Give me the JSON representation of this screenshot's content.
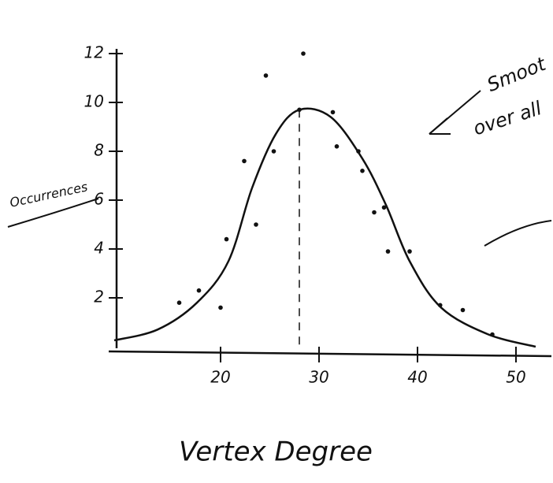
{
  "chart_data": {
    "type": "scatter",
    "x_label": "Vertex Degree",
    "y_label": "Occurrences",
    "annotation": [
      "Smoot",
      "over all"
    ],
    "xlim": [
      8.8,
      53.6
    ],
    "ylim": [
      0,
      12.5
    ],
    "xticks": [
      20,
      30,
      40,
      50
    ],
    "yticks": [
      2,
      4,
      6,
      8,
      10,
      12
    ],
    "color": "#111111",
    "points": {
      "x": [
        15.8,
        17.8,
        20,
        20.6,
        22.4,
        23.6,
        24.6,
        25.4,
        28,
        28.4,
        31.4,
        31.8,
        34,
        34.4,
        35.6,
        36.6,
        37,
        39.2,
        42.3,
        44.6,
        47.6
      ],
      "y": [
        1.8,
        2.3,
        1.6,
        4.4,
        7.6,
        5.0,
        11.1,
        8.0,
        9.7,
        12.0,
        9.6,
        8.2,
        8.0,
        7.2,
        5.5,
        5.7,
        3.9,
        3.9,
        1.7,
        1.5,
        0.5
      ]
    },
    "curve": {
      "x": [
        9.2,
        13.6,
        17.6,
        20.8,
        23.2,
        25.6,
        28,
        31.2,
        34.4,
        36.8,
        39.2,
        42.4,
        47.2,
        52
      ],
      "y": [
        0.26,
        0.7,
        1.8,
        3.5,
        6.5,
        8.7,
        9.7,
        9.4,
        7.7,
        5.8,
        3.5,
        1.6,
        0.5,
        0
      ]
    }
  }
}
